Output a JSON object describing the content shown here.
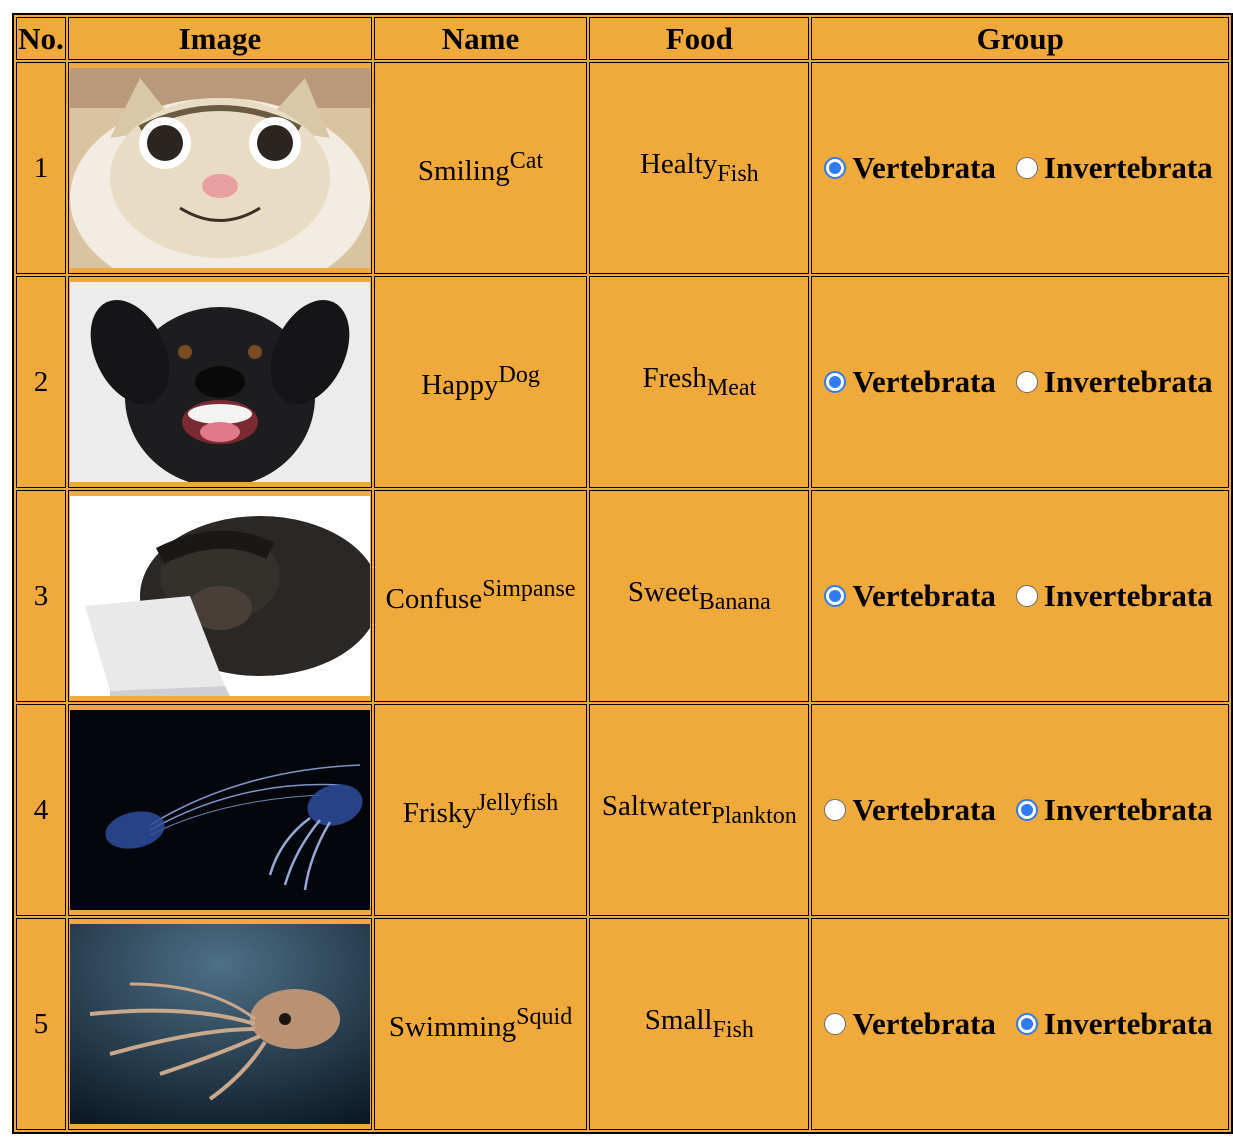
{
  "table": {
    "headers": [
      "No.",
      "Image",
      "Name",
      "Food",
      "Group"
    ],
    "group_options": [
      "Vertebrata",
      "Invertebrata"
    ],
    "rows": [
      {
        "no": "1",
        "image_icon": "smiling-cat-photo",
        "name_main": "Smiling",
        "name_sup": "Cat",
        "food_main": "Healty",
        "food_sub": "Fish",
        "selected_group": "Vertebrata"
      },
      {
        "no": "2",
        "image_icon": "happy-dog-photo",
        "name_main": "Happy",
        "name_sup": "Dog",
        "food_main": "Fresh",
        "food_sub": "Meat",
        "selected_group": "Vertebrata"
      },
      {
        "no": "3",
        "image_icon": "confused-chimpanzee-photo",
        "name_main": "Confuse",
        "name_sup": "Simpanse",
        "food_main": "Sweet",
        "food_sub": "Banana",
        "selected_group": "Vertebrata"
      },
      {
        "no": "4",
        "image_icon": "jellyfish-photo",
        "name_main": "Frisky",
        "name_sup": "Jellyfish",
        "food_main": "Saltwater",
        "food_sub": "Plankton",
        "selected_group": "Invertebrata"
      },
      {
        "no": "5",
        "image_icon": "squid-photo",
        "name_main": "Swimming",
        "name_sup": "Squid",
        "food_main": "Small",
        "food_sub": "Fish",
        "selected_group": "Invertebrata"
      }
    ]
  },
  "colors": {
    "table_background": "#f0aa3c",
    "radio_accent": "#2f7bef"
  }
}
